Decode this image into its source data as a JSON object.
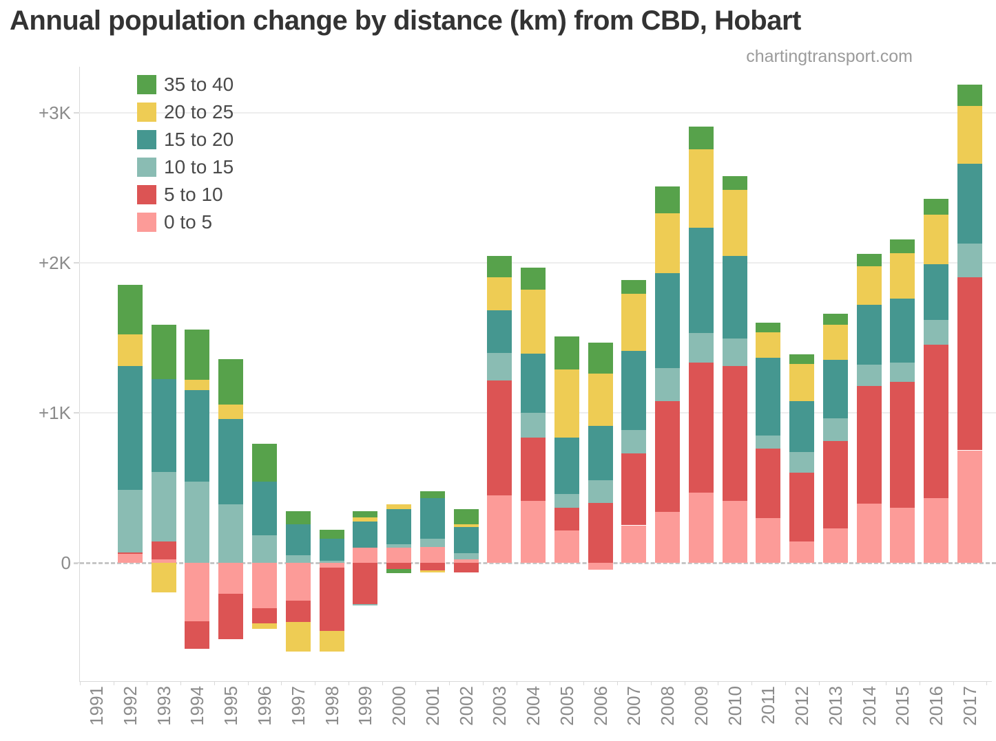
{
  "title": "Annual population change by distance (km) from CBD, Hobart",
  "watermark": "chartingtransport.com",
  "legend": {
    "order": [
      "35 to 40",
      "20 to 25",
      "15 to 20",
      "10 to 15",
      "5 to 10",
      "0 to 5"
    ]
  },
  "y_axis": {
    "ticks": [
      {
        "label": "+3K",
        "value": 3000
      },
      {
        "label": "+2K",
        "value": 2000
      },
      {
        "label": "+1K",
        "value": 1000
      },
      {
        "label": "0",
        "value": 0
      }
    ]
  },
  "chart_data": {
    "type": "bar",
    "stacked": true,
    "title": "Annual population change by distance (km) from CBD, Hobart",
    "xlabel": "",
    "ylabel": "Annual population change",
    "ylim": [
      -650,
      3350
    ],
    "grid": "horizontal",
    "legend_position": "top-left",
    "categories": [
      "1991",
      "1992",
      "1993",
      "1994",
      "1995",
      "1996",
      "1997",
      "1998",
      "1999",
      "2000",
      "2001",
      "2002",
      "2003",
      "2004",
      "2005",
      "2006",
      "2007",
      "2008",
      "2009",
      "2010",
      "2011",
      "2012",
      "2013",
      "2014",
      "2015",
      "2016",
      "2017"
    ],
    "series": [
      {
        "name": "0 to 5",
        "color": "#fc9b98",
        "values": [
          0,
          60,
          25,
          -390,
          -205,
          -305,
          -250,
          -30,
          100,
          100,
          105,
          25,
          450,
          415,
          215,
          -45,
          250,
          340,
          470,
          415,
          300,
          140,
          230,
          395,
          365,
          430,
          750
        ]
      },
      {
        "name": "5 to 10",
        "color": "#dc5454",
        "values": [
          0,
          10,
          115,
          -185,
          -305,
          -100,
          -145,
          -425,
          -275,
          -40,
          -50,
          -65,
          765,
          420,
          150,
          400,
          480,
          740,
          865,
          895,
          460,
          460,
          580,
          785,
          840,
          1025,
          1155
        ]
      },
      {
        "name": "10 to 15",
        "color": "#8abcb3",
        "values": [
          0,
          415,
          465,
          540,
          390,
          185,
          50,
          15,
          -10,
          25,
          55,
          40,
          185,
          165,
          95,
          150,
          155,
          220,
          195,
          185,
          90,
          140,
          155,
          140,
          130,
          165,
          225
        ]
      },
      {
        "name": "15 to 20",
        "color": "#459790",
        "values": [
          0,
          825,
          620,
          610,
          570,
          355,
          205,
          145,
          175,
          235,
          270,
          175,
          285,
          395,
          375,
          365,
          530,
          630,
          705,
          550,
          515,
          340,
          390,
          400,
          425,
          370,
          530
        ]
      },
      {
        "name": "20 to 25",
        "color": "#eecc54",
        "values": [
          0,
          215,
          -195,
          70,
          95,
          -35,
          -195,
          -135,
          30,
          30,
          -15,
          15,
          220,
          425,
          455,
          345,
          380,
          400,
          520,
          440,
          170,
          245,
          230,
          255,
          305,
          330,
          385
        ]
      },
      {
        "name": "35 to 40",
        "color": "#57a24b",
        "values": [
          0,
          330,
          360,
          335,
          305,
          255,
          90,
          60,
          40,
          -30,
          45,
          105,
          140,
          150,
          220,
          210,
          90,
          180,
          155,
          95,
          65,
          65,
          75,
          85,
          90,
          105,
          145
        ]
      }
    ]
  }
}
